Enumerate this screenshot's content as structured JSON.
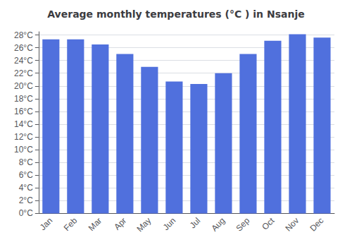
{
  "chart_data": {
    "type": "bar",
    "title": "Average monthly temperatures (°C ) in Nsanje",
    "categories": [
      "Jan",
      "Feb",
      "Mar",
      "Apr",
      "May",
      "Jun",
      "Jul",
      "Aug",
      "Sep",
      "Oct",
      "Nov",
      "Dec"
    ],
    "values": [
      27.3,
      27.3,
      26.5,
      25.0,
      23.0,
      20.7,
      20.3,
      22.0,
      25.0,
      27.1,
      28.1,
      27.6
    ],
    "ylim": [
      0,
      28.5
    ],
    "yticks": [
      {
        "value": 0,
        "label": "0°C"
      },
      {
        "value": 2,
        "label": "2°C"
      },
      {
        "value": 4,
        "label": "4°C"
      },
      {
        "value": 6,
        "label": "6°C"
      },
      {
        "value": 8,
        "label": "8°C"
      },
      {
        "value": 10,
        "label": "10°C"
      },
      {
        "value": 12,
        "label": "12°C"
      },
      {
        "value": 14,
        "label": "14°C"
      },
      {
        "value": 16,
        "label": "16°C"
      },
      {
        "value": 18,
        "label": "18°C"
      },
      {
        "value": 20,
        "label": "20°C"
      },
      {
        "value": 22,
        "label": "22°C"
      },
      {
        "value": 24,
        "label": "24°C"
      },
      {
        "value": 26,
        "label": "26°C"
      },
      {
        "value": 28,
        "label": "28°C"
      }
    ],
    "grid": true
  }
}
